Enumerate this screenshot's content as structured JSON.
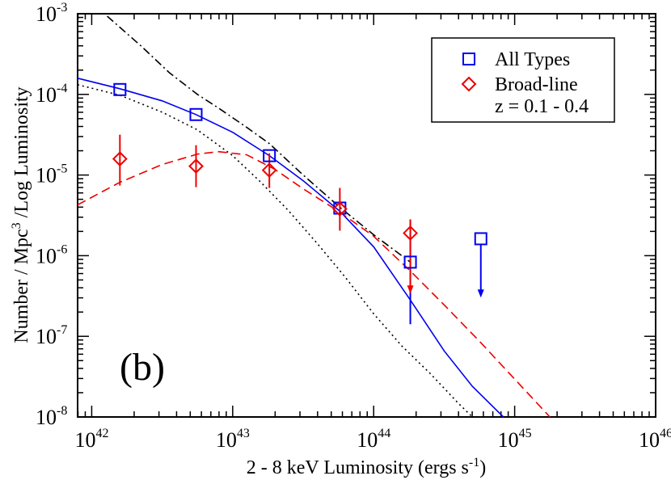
{
  "chart_data": {
    "type": "scatter",
    "panel_label": "(b)",
    "xlabel": "2 - 8 keV Luminosity  (ergs s",
    "xlabel_sup": "-1",
    "xlabel_end": ")",
    "ylabel": "Number / Mpc",
    "ylabel_sup": "3",
    "ylabel_end": " /Log Luminosity",
    "x_scale": "log10",
    "y_scale": "log10",
    "xlim_log": [
      41.9,
      46.0
    ],
    "ylim_log": [
      -8,
      -3
    ],
    "x_ticks": [
      {
        "base": "10",
        "exp": "42",
        "log": 42
      },
      {
        "base": "10",
        "exp": "43",
        "log": 43
      },
      {
        "base": "10",
        "exp": "44",
        "log": 44
      },
      {
        "base": "10",
        "exp": "45",
        "log": 45
      },
      {
        "base": "10",
        "exp": "46",
        "log": 46
      }
    ],
    "y_ticks": [
      {
        "base": "10",
        "exp": "-3",
        "log": -3
      },
      {
        "base": "10",
        "exp": "-4",
        "log": -4
      },
      {
        "base": "10",
        "exp": "-5",
        "log": -5
      },
      {
        "base": "10",
        "exp": "-6",
        "log": -6
      },
      {
        "base": "10",
        "exp": "-7",
        "log": -7
      },
      {
        "base": "10",
        "exp": "-8",
        "log": -8
      }
    ],
    "legend": {
      "placement": "top-right",
      "entries": [
        {
          "label": "All Types",
          "marker": "square",
          "color": "#0000ee"
        },
        {
          "label": "Broad-line",
          "marker": "diamond",
          "color": "#ee0000"
        },
        {
          "label": "z = 0.1 - 0.4",
          "marker": "none",
          "color": "#000000"
        }
      ]
    },
    "series": [
      {
        "name": "All Types",
        "marker": "square",
        "color": "#0000ee",
        "points": [
          {
            "logL": 42.2,
            "logPhi": -3.94,
            "errLow": null,
            "errHigh": null
          },
          {
            "logL": 42.74,
            "logPhi": -4.25,
            "errLow": null,
            "errHigh": null
          },
          {
            "logL": 43.26,
            "logPhi": -4.76,
            "errLow": null,
            "errHigh": null
          },
          {
            "logL": 43.76,
            "logPhi": -5.41,
            "errLow": null,
            "errHigh": null
          },
          {
            "logL": 44.26,
            "logPhi": -6.08,
            "errLow": null,
            "errHigh": null
          }
        ],
        "upper_limits": [
          {
            "logL": 44.76,
            "logPhi": -5.79,
            "arrow_to": -6.5
          }
        ]
      },
      {
        "name": "Broad-line",
        "marker": "diamond",
        "color": "#ee0000",
        "points": [
          {
            "logL": 42.2,
            "logPhi": -4.8,
            "errLow": -5.13,
            "errHigh": -4.5
          },
          {
            "logL": 42.74,
            "logPhi": -4.89,
            "errLow": -5.15,
            "errHigh": -4.63
          },
          {
            "logL": 43.26,
            "logPhi": -4.94,
            "errLow": -5.16,
            "errHigh": -4.73
          },
          {
            "logL": 43.76,
            "logPhi": -5.42,
            "errLow": -5.69,
            "errHigh": -5.16
          },
          {
            "logL": 44.26,
            "logPhi": -5.72,
            "errLow": null,
            "errHigh": -5.55,
            "arrow_to": -6.45
          }
        ]
      }
    ],
    "extra_error_bars": [
      {
        "logL": 44.26,
        "low": -6.85,
        "high": -5.55,
        "color": "#0000ee"
      }
    ],
    "curves": [
      {
        "name": "All Types fit",
        "style": "solid",
        "color": "#0000ee",
        "x": [
          41.9,
          42.2,
          42.5,
          42.74,
          43.0,
          43.26,
          43.5,
          43.76,
          44.0,
          44.26,
          44.5,
          44.7,
          44.92
        ],
        "y": [
          -3.8,
          -3.93,
          -4.08,
          -4.25,
          -4.47,
          -4.76,
          -5.07,
          -5.45,
          -5.89,
          -6.55,
          -7.18,
          -7.62,
          -8.0
        ]
      },
      {
        "name": "Broad-line fit",
        "style": "dashed",
        "color": "#ee0000",
        "x": [
          41.9,
          42.2,
          42.5,
          42.75,
          42.9,
          43.1,
          43.3,
          43.5,
          43.76,
          44.0,
          44.26,
          44.5,
          44.75,
          45.0,
          45.25
        ],
        "y": [
          -5.37,
          -5.09,
          -4.87,
          -4.74,
          -4.71,
          -4.75,
          -4.93,
          -5.17,
          -5.46,
          -5.76,
          -6.19,
          -6.61,
          -7.06,
          -7.53,
          -8.0
        ]
      },
      {
        "name": "Dotted model",
        "style": "dotted",
        "color": "#000000",
        "x": [
          41.9,
          42.2,
          42.5,
          42.75,
          43.0,
          43.2,
          43.4,
          43.6,
          43.8,
          44.0,
          44.2,
          44.4,
          44.6,
          44.7
        ],
        "y": [
          -3.88,
          -4.01,
          -4.22,
          -4.44,
          -4.76,
          -5.09,
          -5.45,
          -5.85,
          -6.27,
          -6.72,
          -7.12,
          -7.46,
          -7.83,
          -8.0
        ]
      },
      {
        "name": "Dash-dot model",
        "style": "dashdot",
        "color": "#000000",
        "x": [
          42.11,
          42.35,
          42.55,
          42.75,
          42.9,
          43.1,
          43.26,
          43.5,
          43.76,
          44.0,
          44.26
        ],
        "y": [
          -3.03,
          -3.4,
          -3.73,
          -4.0,
          -4.17,
          -4.41,
          -4.61,
          -5.0,
          -5.4,
          -5.74,
          -6.08
        ]
      }
    ]
  }
}
